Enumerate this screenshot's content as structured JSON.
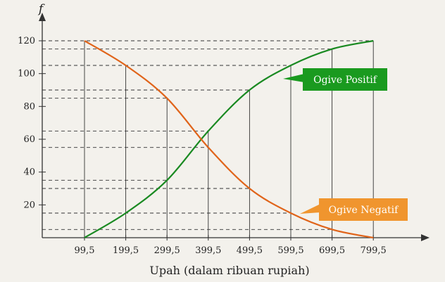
{
  "chart_data": {
    "type": "line",
    "title": "",
    "xlabel": "Upah (dalam ribuan rupiah)",
    "ylabel": "f",
    "x": [
      99.5,
      199.5,
      299.5,
      399.5,
      499.5,
      599.5,
      699.5,
      799.5
    ],
    "x_tick_labels": [
      "99,5",
      "199,5",
      "299,5",
      "399,5",
      "499,5",
      "599,5",
      "699,5",
      "799,5"
    ],
    "y_ticks": [
      20,
      40,
      60,
      80,
      100,
      120
    ],
    "ylim": [
      0,
      120
    ],
    "series": [
      {
        "name": "Ogive Positif",
        "color": "#1a8a22",
        "values": [
          0,
          15,
          35,
          65,
          90,
          105,
          115,
          120
        ]
      },
      {
        "name": "Ogive Negatif",
        "color": "#e0641a",
        "values": [
          120,
          105,
          85,
          55,
          30,
          15,
          5,
          0
        ]
      }
    ],
    "grid": "dashed horizontal guides at curve values, solid vertical lines at class boundaries",
    "callouts": [
      {
        "series": "Ogive Positif",
        "label": "Ogive Positif",
        "color": "#1a9a1f"
      },
      {
        "series": "Ogive Negatif",
        "label": "Ogive Negatif",
        "color": "#f0952e"
      }
    ]
  }
}
